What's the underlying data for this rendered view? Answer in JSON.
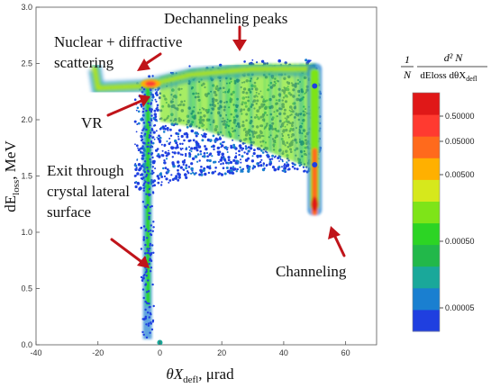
{
  "chart_data": {
    "type": "heatmap",
    "xlabel": {
      "main": "θX",
      "sub": "defl",
      "unit": ", μrad"
    },
    "ylabel": {
      "main": "dE",
      "sub": "loss",
      "unit": ", MeV"
    },
    "xlim": [
      -40,
      70
    ],
    "ylim": [
      0,
      3.0
    ],
    "x_ticks": [
      -40,
      -20,
      0,
      20,
      40,
      60
    ],
    "y_ticks": [
      0.0,
      0.5,
      1.0,
      1.5,
      2.0,
      2.5,
      3.0
    ],
    "colorbar": {
      "title_numerator": "d² N",
      "title_fraction": {
        "num": "1",
        "den": "N"
      },
      "title_denominator": "dEloss dθX",
      "title_denominator_sub": "defl",
      "ticks": [
        "0.50000",
        "0.05000",
        "0.00500",
        "0.00050",
        "0.00005"
      ],
      "scale": "log",
      "colors": [
        "#1f3fe0",
        "#1a7fd0",
        "#1aa89a",
        "#22b84a",
        "#2cd424",
        "#7ee418",
        "#d6e81c",
        "#ffb000",
        "#ff6a1c",
        "#ff3a30",
        "#e01818"
      ]
    },
    "features": {
      "main_band": [
        {
          "x": -20,
          "y": 2.28
        },
        {
          "x": -5,
          "y": 2.3
        },
        {
          "x": 10,
          "y": 2.4
        },
        {
          "x": 30,
          "y": 2.45
        },
        {
          "x": 50,
          "y": 2.45
        }
      ],
      "vr_peak": {
        "x": -3,
        "y": 2.32
      },
      "vertical_stripe": {
        "x": -4,
        "y_from": 0.05,
        "y_to": 2.3
      },
      "channeling_peak": {
        "x": 50,
        "y": 1.15
      },
      "dechanneling_region": {
        "x_from": 0,
        "x_to": 50,
        "y_from": 1.7,
        "y_to": 2.55
      }
    },
    "annotations": [
      {
        "text": "Dechanneling peaks",
        "x": 7,
        "y": 2.85
      },
      {
        "text": "Nuclear + diffractive",
        "x": -38,
        "y": 2.66
      },
      {
        "text": "scattering",
        "x": -38,
        "y": 2.48
      },
      {
        "text": "VR",
        "x": -28,
        "y": 1.95
      },
      {
        "text": "Exit through",
        "x": -40,
        "y": 1.52
      },
      {
        "text": "crystal lateral",
        "x": -40,
        "y": 1.34
      },
      {
        "text": "surface",
        "x": -40,
        "y": 1.16
      },
      {
        "text": "Channeling",
        "x": 33,
        "y": 0.64
      }
    ]
  }
}
